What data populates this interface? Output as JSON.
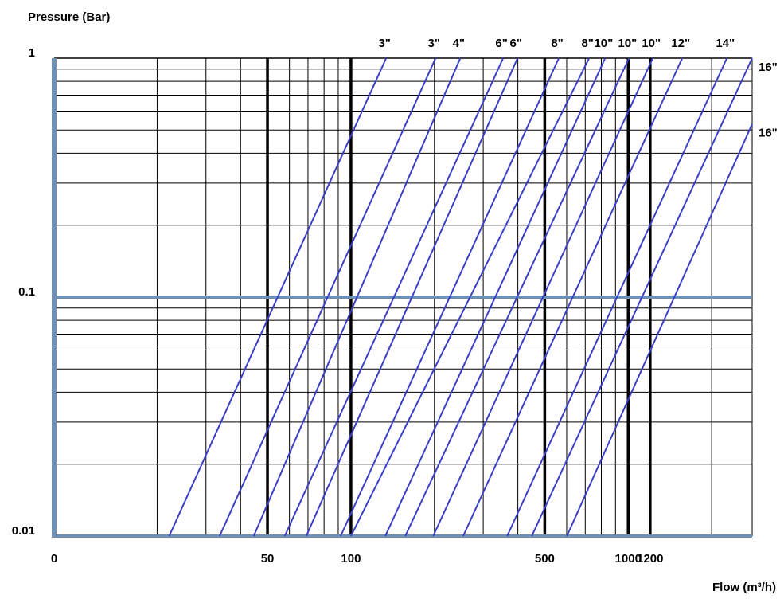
{
  "chart_data": {
    "type": "line",
    "title": "Pressure (Bar)",
    "x_label": "Flow (m³/h)",
    "x_origin_label": "0",
    "x_log": true,
    "y_log": true,
    "xlim": [
      8.5,
      2800
    ],
    "ylim": [
      0.01,
      1
    ],
    "xticks": [
      50,
      100,
      500,
      1000,
      1200
    ],
    "yticks": [
      0.01,
      0.1,
      1
    ],
    "grid": true,
    "x_minor_grid": [
      20,
      30,
      40,
      60,
      70,
      80,
      90,
      200,
      300,
      400,
      600,
      700,
      800,
      900,
      2000
    ],
    "y_minor_grid": [
      0.02,
      0.03,
      0.04,
      0.05,
      0.06,
      0.07,
      0.08,
      0.09,
      0.2,
      0.3,
      0.4,
      0.5,
      0.6,
      0.7,
      0.8,
      0.9
    ],
    "color": "#3b3fc6",
    "series": [
      {
        "name": "3\"",
        "x": [
          22.1,
          134
        ],
        "values": [
          0.01,
          1
        ]
      },
      {
        "name": "3\"",
        "x": [
          33.6,
          202
        ],
        "values": [
          0.01,
          1
        ]
      },
      {
        "name": "4\"",
        "x": [
          44.6,
          248
        ],
        "values": [
          0.01,
          1
        ]
      },
      {
        "name": "6\"",
        "x": [
          57.7,
          354
        ],
        "values": [
          0.01,
          1
        ]
      },
      {
        "name": "6\"",
        "x": [
          69,
          399
        ],
        "values": [
          0.01,
          1
        ]
      },
      {
        "name": "8\"",
        "x": [
          91.8,
          562
        ],
        "values": [
          0.01,
          1
        ]
      },
      {
        "name": "8\"",
        "x": [
          100,
          723
        ],
        "values": [
          0.01,
          1
        ]
      },
      {
        "name": "10\"",
        "x": [
          133,
          826
        ],
        "values": [
          0.01,
          1
        ]
      },
      {
        "name": "10\"",
        "x": [
          157,
          1007
        ],
        "values": [
          0.01,
          1
        ]
      },
      {
        "name": "10\"",
        "x": [
          198,
          1227
        ],
        "values": [
          0.01,
          1
        ]
      },
      {
        "name": "12\"",
        "x": [
          254,
          1567
        ],
        "values": [
          0.01,
          1
        ]
      },
      {
        "name": "14\"",
        "x": [
          366,
          2270
        ],
        "values": [
          0.01,
          1
        ]
      },
      {
        "name": "16\"",
        "x": [
          449,
          2800
        ],
        "values": [
          0.01,
          1
        ]
      },
      {
        "name": "16\"",
        "x": [
          601,
          2800
        ],
        "values": [
          0.01,
          0.53
        ]
      }
    ]
  }
}
